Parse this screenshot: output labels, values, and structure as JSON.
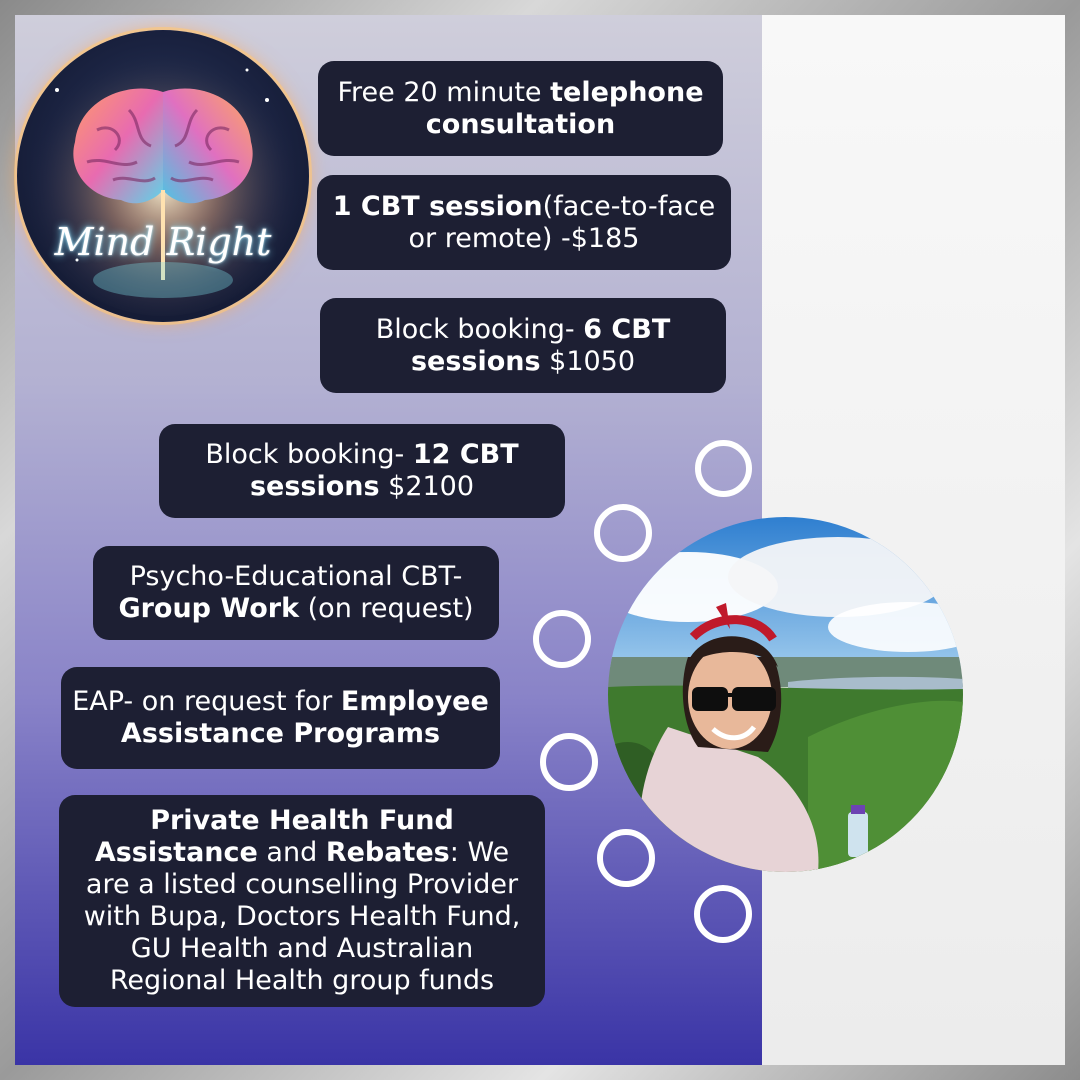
{
  "logo": {
    "text_left": "Mind",
    "text_right": "Right"
  },
  "bubbles": [
    {
      "parts": [
        {
          "t": "Free 20 minute ",
          "b": false
        },
        {
          "t": "telephone consultation",
          "b": true
        }
      ]
    },
    {
      "parts": [
        {
          "t": "1 CBT session",
          "b": true
        },
        {
          "t": "(face-to-face or remote) -$185",
          "b": false
        }
      ]
    },
    {
      "parts": [
        {
          "t": "Block booking- ",
          "b": false
        },
        {
          "t": "6 CBT sessions",
          "b": true
        },
        {
          "t": " $1050",
          "b": false
        }
      ]
    },
    {
      "parts": [
        {
          "t": "Block booking- ",
          "b": false
        },
        {
          "t": "12 CBT sessions",
          "b": true
        },
        {
          "t": " $2100",
          "b": false
        }
      ]
    },
    {
      "parts": [
        {
          "t": "Psycho-Educational CBT- ",
          "b": false
        },
        {
          "t": "Group Work",
          "b": true
        },
        {
          "t": " (on request)",
          "b": false
        }
      ]
    },
    {
      "parts": [
        {
          "t": "EAP- on request for ",
          "b": false
        },
        {
          "t": "Employee Assistance Programs",
          "b": true
        }
      ]
    },
    {
      "parts": [
        {
          "t": "Private Health Fund Assistance",
          "b": true
        },
        {
          "t": " and ",
          "b": false
        },
        {
          "t": "Rebates",
          "b": true
        },
        {
          "t": ": We are a listed counselling Provider with Bupa, Doctors Health Fund, GU Health and Australian Regional Health group funds",
          "b": false
        }
      ]
    }
  ],
  "colors": {
    "bubble": "#1d1f33",
    "ring": "#ffffff",
    "gradient_bottom": "#3a34a6"
  }
}
